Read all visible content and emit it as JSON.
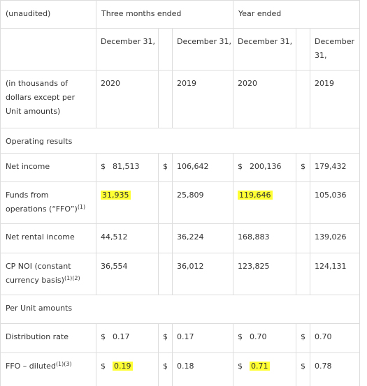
{
  "header": {
    "unaudited": "(unaudited)",
    "three_months": "Three months ended",
    "year": "Year ended",
    "period_ends": [
      "December 31,",
      "December 31,",
      "December 31,",
      "December 31,"
    ],
    "units": "(in thousands of dollars except per Unit amounts)",
    "years": [
      "2020",
      "2019",
      "2020",
      "2019"
    ]
  },
  "rows": [
    {
      "label": "Operating results"
    },
    {
      "label": "Net income",
      "cells": [
        {
          "cur": "$",
          "text": "81,513"
        },
        {
          "cur": "$",
          "text": "106,642"
        },
        {
          "cur": "$",
          "text": "200,136"
        },
        {
          "cur": "$",
          "text": "179,432"
        }
      ]
    },
    {
      "label": "Funds from operations (“FFO”)",
      "note": "(1)",
      "cells": [
        {
          "text": "31,935",
          "highlight": true
        },
        {
          "text": "25,809"
        },
        {
          "text": "119,646",
          "highlight": true
        },
        {
          "text": "105,036"
        }
      ]
    },
    {
      "label": "Net rental income",
      "cells": [
        {
          "text": "44,512"
        },
        {
          "text": "36,224"
        },
        {
          "text": "168,883"
        },
        {
          "text": "139,026"
        }
      ]
    },
    {
      "label": "CP NOI (constant currency basis)",
      "note": "(1)(2)",
      "cells": [
        {
          "text": "36,554"
        },
        {
          "text": "36,012"
        },
        {
          "text": "123,825"
        },
        {
          "text": "124,131"
        }
      ]
    },
    {
      "label": "Per Unit amounts"
    },
    {
      "label": "Distribution rate",
      "cells": [
        {
          "cur": "$",
          "text": "0.17"
        },
        {
          "cur": "$",
          "text": "0.17"
        },
        {
          "cur": "$",
          "text": "0.70"
        },
        {
          "cur": "$",
          "text": "0.70"
        }
      ]
    },
    {
      "label": "FFO – diluted",
      "note": "(1)(3)",
      "cells": [
        {
          "cur": "$",
          "text": "0.19",
          "highlight": true
        },
        {
          "cur": "$",
          "text": "0.18"
        },
        {
          "cur": "$",
          "text": "0.71",
          "highlight": true
        },
        {
          "cur": "$",
          "text": "0.78"
        }
      ]
    }
  ]
}
